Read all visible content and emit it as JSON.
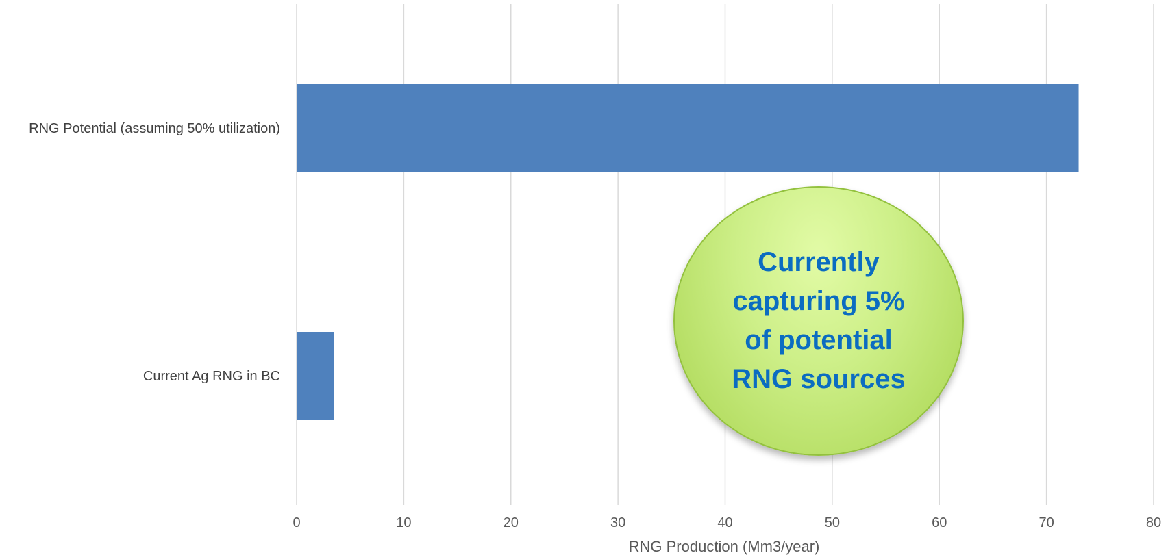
{
  "chart_data": {
    "type": "bar",
    "orientation": "horizontal",
    "categories": [
      "RNG Potential (assuming 50% utilization)",
      "Current Ag RNG in BC"
    ],
    "values": [
      73,
      3.5
    ],
    "xlabel": "RNG Production (Mm3/year)",
    "xlim": [
      0,
      80
    ],
    "xticks": [
      0,
      10,
      20,
      30,
      40,
      50,
      60,
      70,
      80
    ],
    "grid": "vertical",
    "legend": "none",
    "bar_color": "#4f81bd",
    "annotation": "Currently capturing 5% of potential RNG sources"
  }
}
